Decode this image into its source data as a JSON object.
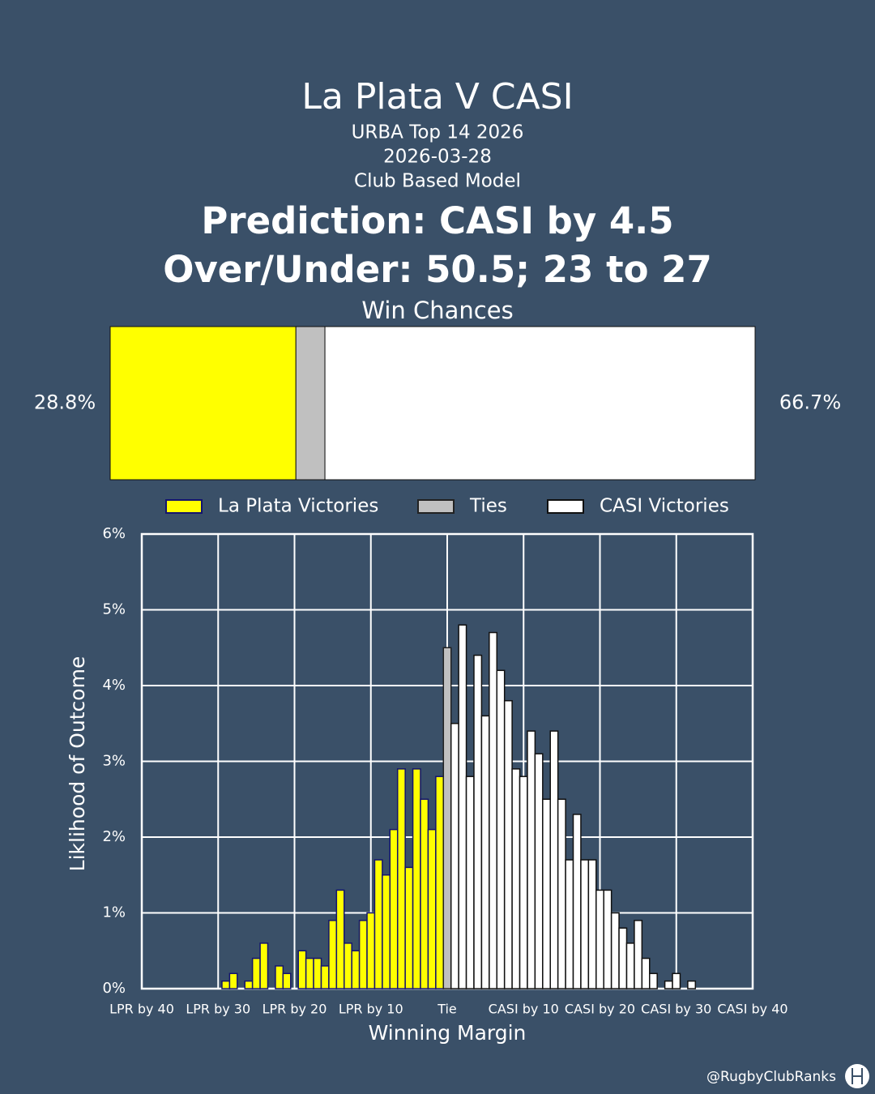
{
  "title": "La Plata V CASI",
  "subtitle": [
    "URBA Top 14 2026",
    "2026-03-28",
    "Club Based Model"
  ],
  "headline": [
    "Prediction: CASI by 4.5",
    "Over/Under: 50.5; 23 to 27"
  ],
  "credit": "@RugbyClubRanks",
  "chart_data": [
    {
      "type": "stacked_bar_h",
      "title": "Win Chances",
      "xlim": [
        0,
        100
      ],
      "series": [
        {
          "color": "#ffff00",
          "values": [
            28.8
          ],
          "value_labels": [
            "28.8%"
          ]
        },
        {
          "color": "#c0c0c0",
          "values": [
            4.5
          ]
        },
        {
          "color": "#ffffff",
          "values": [
            66.7
          ],
          "value_labels": [
            "66.7%"
          ]
        }
      ]
    },
    {
      "type": "bar",
      "xlabel": "Winning Margin",
      "ylabel": "Liklihood of Outcome",
      "xlim": [
        -40,
        40
      ],
      "ylim": [
        0,
        6
      ],
      "grid": true,
      "legend": "top",
      "xticks": [
        {
          "value": -40,
          "label": "LPR by 40"
        },
        {
          "value": -30,
          "label": "LPR by 30"
        },
        {
          "value": -20,
          "label": "LPR by 20"
        },
        {
          "value": -10,
          "label": "LPR by 10"
        },
        {
          "value": 0,
          "label": "Tie"
        },
        {
          "value": 10,
          "label": "CASI by 10"
        },
        {
          "value": 20,
          "label": "CASI by 20"
        },
        {
          "value": 30,
          "label": "CASI by 30"
        },
        {
          "value": 40,
          "label": "CASI by 40"
        }
      ],
      "yticks": [
        {
          "value": 0,
          "label": "0%"
        },
        {
          "value": 1,
          "label": "1%"
        },
        {
          "value": 2,
          "label": "2%"
        },
        {
          "value": 3,
          "label": "3%"
        },
        {
          "value": 4,
          "label": "4%"
        },
        {
          "value": 5,
          "label": "5%"
        },
        {
          "value": 6,
          "label": "6%"
        }
      ],
      "series": [
        {
          "name": "La Plata Victories",
          "color": "#ffff00",
          "edge": "#14146e",
          "x": [
            -29,
            -28,
            -27,
            -26,
            -25,
            -24,
            -23,
            -22,
            -21,
            -20,
            -19,
            -18,
            -17,
            -16,
            -15,
            -14,
            -13,
            -12,
            -11,
            -10,
            -9,
            -8,
            -7,
            -6,
            -5,
            -4,
            -3,
            -2,
            -1
          ],
          "values": [
            0.1,
            0.2,
            0,
            0.1,
            0.4,
            0.6,
            0,
            0.3,
            0.2,
            0,
            0.5,
            0.4,
            0.4,
            0.3,
            0.9,
            1.3,
            0.6,
            0.5,
            0.9,
            1.0,
            1.7,
            1.5,
            2.1,
            2.9,
            1.6,
            2.9,
            2.5,
            2.1,
            2.8
          ]
        },
        {
          "name": "Ties",
          "color": "#c0c0c0",
          "edge": "#222222",
          "x": [
            0
          ],
          "values": [
            4.5
          ]
        },
        {
          "name": "CASI Victories",
          "color": "#ffffff",
          "edge": "#111111",
          "x": [
            1,
            2,
            3,
            4,
            5,
            6,
            7,
            8,
            9,
            10,
            11,
            12,
            13,
            14,
            15,
            16,
            17,
            18,
            19,
            20,
            21,
            22,
            23,
            24,
            25,
            26,
            27,
            28,
            29,
            30,
            31,
            32
          ],
          "values": [
            3.5,
            4.8,
            2.8,
            4.4,
            3.6,
            4.7,
            4.2,
            3.8,
            2.9,
            2.8,
            3.4,
            3.1,
            2.5,
            3.4,
            2.5,
            1.7,
            2.3,
            1.7,
            1.7,
            1.3,
            1.3,
            1.0,
            0.8,
            0.6,
            0.9,
            0.4,
            0.2,
            0,
            0.1,
            0.2,
            0,
            0.1
          ]
        }
      ]
    }
  ]
}
